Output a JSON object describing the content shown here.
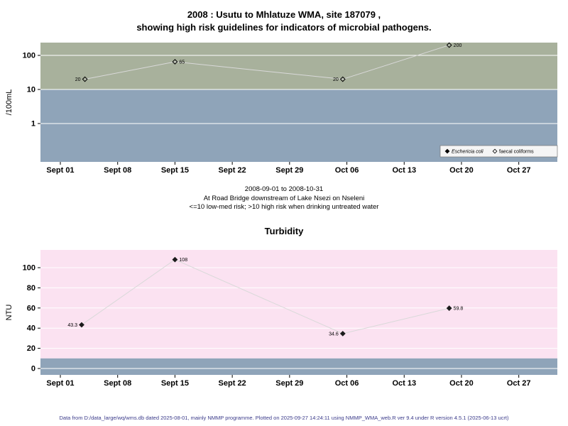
{
  "page": {
    "title_line1": "2008 : Usutu to Mhlatuze WMA, site 187079 ,",
    "title_line2": "showing high risk guidelines for indicators of microbial pathogens.",
    "footer": "Data from D:/data_large/wq/wms.db dated 2025-08-01, mainly NMMP programme. Plotted on 2025-09-27 14:24:11 using NMMP_WMA_web.R ver 9.4 under R version 4.5.1 (2025-06-13 ucrt)"
  },
  "chart_data": [
    {
      "id": "microbial",
      "type": "scatter",
      "title": "",
      "ylabel": "/100mL",
      "yscale": "log",
      "ylim": [
        0.075,
        240
      ],
      "risk_threshold": 10,
      "grid": "horizontal",
      "yticks": [
        {
          "value": 1,
          "label": "1"
        },
        {
          "value": 10,
          "label": "10"
        },
        {
          "value": 100,
          "label": "100"
        }
      ],
      "x_ticks": [
        {
          "day": 0,
          "label": "Sept 01"
        },
        {
          "day": 7,
          "label": "Sept 08"
        },
        {
          "day": 14,
          "label": "Sept 15"
        },
        {
          "day": 21,
          "label": "Sept 22"
        },
        {
          "day": 28,
          "label": "Sept 29"
        },
        {
          "day": 35,
          "label": "Oct 06"
        },
        {
          "day": 42,
          "label": "Oct 13"
        },
        {
          "day": 49,
          "label": "Oct 20"
        },
        {
          "day": 56,
          "label": "Oct 27"
        }
      ],
      "series": [
        {
          "name": "Eschericia coli",
          "marker": "filled-diamond",
          "points": []
        },
        {
          "name": "faecal coliforms",
          "marker": "open-diamond",
          "points": [
            {
              "day": 3,
              "value": 20,
              "label": "20",
              "label_side": "left"
            },
            {
              "day": 14,
              "value": 65,
              "label": "65",
              "label_side": "right"
            },
            {
              "day": 34.5,
              "value": 20,
              "label": "20",
              "label_side": "left"
            },
            {
              "day": 47.5,
              "value": 200,
              "label": "200",
              "label_side": "right"
            }
          ]
        }
      ],
      "legend": [
        {
          "label": "Eschericia coli",
          "marker": "filled-diamond",
          "italic": true
        },
        {
          "label": "faecal coliforms",
          "marker": "open-diamond",
          "italic": false
        }
      ],
      "legend_position": "bottom-right",
      "subtitle_lines": [
        "2008-09-01 to 2008-10-31",
        "At Road Bridge downstream of Lake Nsezi on Nseleni",
        "<=10 low-med risk; >10 high risk when drinking untreated water"
      ],
      "colors": {
        "band_above": "#a8b19c",
        "band_below": "#8fa4b9",
        "grid": "#ffffff",
        "line": "#d9d9d9",
        "marker": "#1c1c1c"
      }
    },
    {
      "id": "turbidity",
      "type": "scatter",
      "title": "Turbidity",
      "ylabel": "NTU",
      "yscale": "linear",
      "ylim": [
        -6,
        118
      ],
      "risk_threshold": 10,
      "grid": "horizontal",
      "yticks": [
        {
          "value": 0,
          "label": "0"
        },
        {
          "value": 20,
          "label": "20"
        },
        {
          "value": 40,
          "label": "40"
        },
        {
          "value": 60,
          "label": "60"
        },
        {
          "value": 80,
          "label": "80"
        },
        {
          "value": 100,
          "label": "100"
        }
      ],
      "x_ticks": [
        {
          "day": 0,
          "label": "Sept 01"
        },
        {
          "day": 7,
          "label": "Sept 08"
        },
        {
          "day": 14,
          "label": "Sept 15"
        },
        {
          "day": 21,
          "label": "Sept 22"
        },
        {
          "day": 28,
          "label": "Sept 29"
        },
        {
          "day": 35,
          "label": "Oct 06"
        },
        {
          "day": 42,
          "label": "Oct 13"
        },
        {
          "day": 49,
          "label": "Oct 20"
        },
        {
          "day": 56,
          "label": "Oct 27"
        }
      ],
      "series": [
        {
          "name": "Turbidity",
          "marker": "filled-diamond",
          "points": [
            {
              "day": 2.6,
              "value": 43.3,
              "label": "43.3",
              "label_side": "left"
            },
            {
              "day": 14,
              "value": 108,
              "label": "108",
              "label_side": "right"
            },
            {
              "day": 34.5,
              "value": 34.6,
              "label": "34.6",
              "label_side": "left"
            },
            {
              "day": 47.5,
              "value": 59.8,
              "label": "59.8",
              "label_side": "right"
            }
          ]
        }
      ],
      "colors": {
        "band_above": "#fbe2f1",
        "band_below": "#8fa4b9",
        "grid": "#ffffff",
        "line": "#d9d9d9",
        "marker": "#1c1c1c"
      }
    }
  ]
}
